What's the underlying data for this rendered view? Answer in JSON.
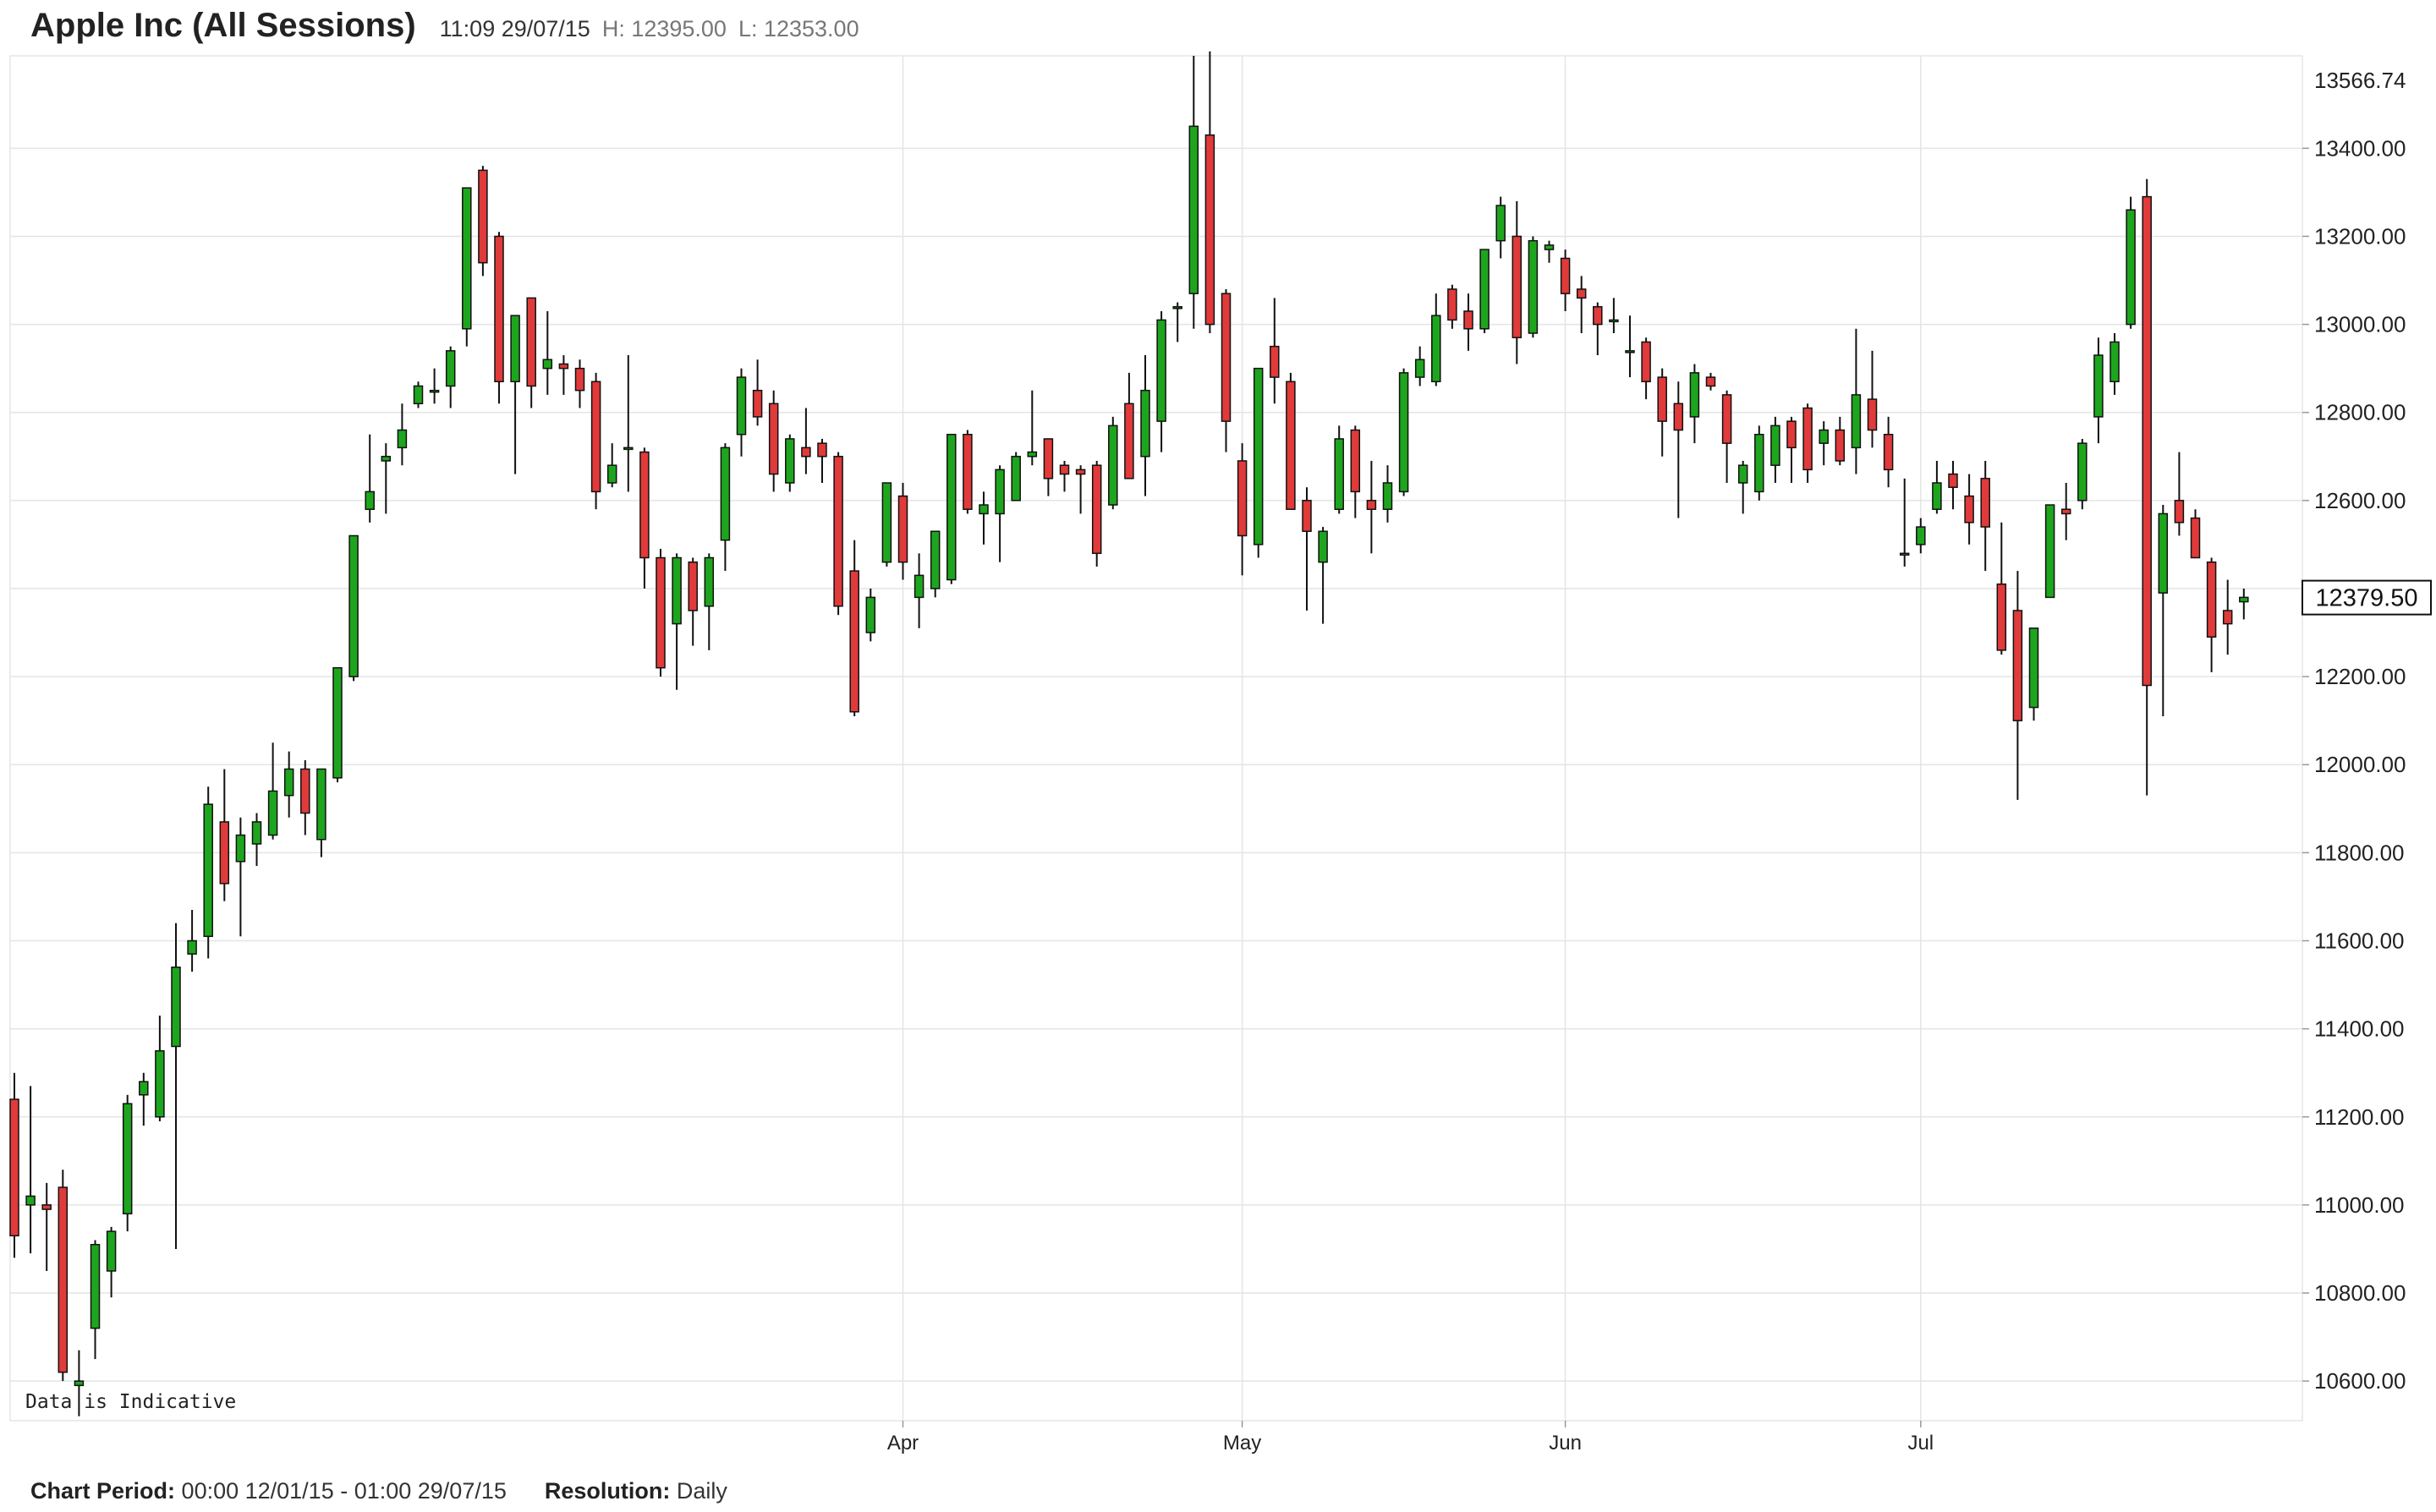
{
  "header": {
    "title": "Apple Inc (All Sessions)",
    "time": "11:09 29/07/15",
    "high": "H: 12395.00",
    "low": "L: 12353.00"
  },
  "footer": {
    "period_label": "Chart Period:",
    "period_value": "00:00 12/01/15 - 01:00 29/07/15",
    "resolution_label": "Resolution:",
    "resolution_value": "Daily"
  },
  "chart_data": {
    "type": "candlestick",
    "note": "Data is Indicative",
    "current_price": "12379.50",
    "top_price": "13566.74",
    "y_ticks": [
      10600,
      10800,
      11000,
      11200,
      11400,
      11600,
      11800,
      12000,
      12200,
      12400,
      12600,
      12800,
      13000,
      13200,
      13400
    ],
    "y_tick_labels": [
      "10600.00",
      "10800.00",
      "11000.00",
      "11200.00",
      "11400.00",
      "11600.00",
      "11800.00",
      "12000.00",
      "12200.00",
      "12400.00",
      "12600.00",
      "12800.00",
      "13000.00",
      "13200.00",
      "13400.00"
    ],
    "ylim": [
      10510,
      13610
    ],
    "x_labels": [
      {
        "label": "Apr",
        "index": 55
      },
      {
        "label": "May",
        "index": 76
      },
      {
        "label": "Jun",
        "index": 96
      },
      {
        "label": "Jul",
        "index": 118
      }
    ],
    "colors": {
      "up": "#1ea51e",
      "down": "#e03a3a",
      "wick": "#111111",
      "grid": "#e4e4e4"
    },
    "candles": [
      [
        11240,
        11300,
        10880,
        10930
      ],
      [
        11000,
        11270,
        10890,
        11020
      ],
      [
        11000,
        11050,
        10850,
        10990
      ],
      [
        11040,
        11080,
        10600,
        10620
      ],
      [
        10590,
        10670,
        10520,
        10600
      ],
      [
        10720,
        10920,
        10650,
        10910
      ],
      [
        10850,
        10950,
        10790,
        10940
      ],
      [
        10980,
        11250,
        10940,
        11230
      ],
      [
        11250,
        11300,
        11180,
        11280
      ],
      [
        11200,
        11430,
        11190,
        11350
      ],
      [
        11360,
        11640,
        10900,
        11540
      ],
      [
        11570,
        11670,
        11530,
        11600
      ],
      [
        11610,
        11950,
        11560,
        11910
      ],
      [
        11870,
        11990,
        11690,
        11730
      ],
      [
        11780,
        11880,
        11610,
        11840
      ],
      [
        11820,
        11890,
        11770,
        11870
      ],
      [
        11840,
        12050,
        11830,
        11940
      ],
      [
        11930,
        12030,
        11880,
        11990
      ],
      [
        11990,
        12010,
        11840,
        11890
      ],
      [
        11830,
        11990,
        11790,
        11990
      ],
      [
        11970,
        12220,
        11960,
        12220
      ],
      [
        12200,
        12520,
        12190,
        12520
      ],
      [
        12580,
        12750,
        12550,
        12620
      ],
      [
        12690,
        12730,
        12570,
        12700
      ],
      [
        12720,
        12820,
        12680,
        12760
      ],
      [
        12820,
        12870,
        12810,
        12860
      ],
      [
        12850,
        12900,
        12820,
        12850
      ],
      [
        12860,
        12950,
        12810,
        12940
      ],
      [
        12990,
        13310,
        12950,
        13310
      ],
      [
        13350,
        13360,
        13110,
        13140
      ],
      [
        13200,
        13210,
        12820,
        12870
      ],
      [
        12870,
        13020,
        12660,
        13020
      ],
      [
        13060,
        13060,
        12810,
        12860
      ],
      [
        12900,
        13030,
        12840,
        12920
      ],
      [
        12910,
        12930,
        12840,
        12900
      ],
      [
        12900,
        12920,
        12810,
        12850
      ],
      [
        12870,
        12890,
        12580,
        12620
      ],
      [
        12640,
        12730,
        12630,
        12680
      ],
      [
        12720,
        12930,
        12620,
        12720
      ],
      [
        12710,
        12720,
        12400,
        12470
      ],
      [
        12470,
        12490,
        12200,
        12220
      ],
      [
        12320,
        12480,
        12170,
        12470
      ],
      [
        12460,
        12470,
        12270,
        12350
      ],
      [
        12360,
        12480,
        12260,
        12470
      ],
      [
        12510,
        12730,
        12440,
        12720
      ],
      [
        12750,
        12900,
        12700,
        12880
      ],
      [
        12850,
        12920,
        12770,
        12790
      ],
      [
        12820,
        12850,
        12620,
        12660
      ],
      [
        12640,
        12750,
        12620,
        12740
      ],
      [
        12720,
        12810,
        12660,
        12700
      ],
      [
        12730,
        12740,
        12640,
        12700
      ],
      [
        12700,
        12710,
        12340,
        12360
      ],
      [
        12440,
        12510,
        12110,
        12120
      ],
      [
        12300,
        12400,
        12280,
        12380
      ],
      [
        12460,
        12640,
        12450,
        12640
      ],
      [
        12610,
        12640,
        12420,
        12460
      ],
      [
        12380,
        12480,
        12310,
        12430
      ],
      [
        12400,
        12530,
        12380,
        12530
      ],
      [
        12420,
        12750,
        12410,
        12750
      ],
      [
        12750,
        12760,
        12570,
        12580
      ],
      [
        12570,
        12620,
        12500,
        12590
      ],
      [
        12570,
        12680,
        12460,
        12670
      ],
      [
        12600,
        12710,
        12600,
        12700
      ],
      [
        12700,
        12850,
        12680,
        12710
      ],
      [
        12740,
        12740,
        12610,
        12650
      ],
      [
        12680,
        12690,
        12620,
        12660
      ],
      [
        12670,
        12680,
        12570,
        12660
      ],
      [
        12680,
        12690,
        12450,
        12480
      ],
      [
        12590,
        12790,
        12580,
        12770
      ],
      [
        12820,
        12890,
        12650,
        12650
      ],
      [
        12700,
        12930,
        12610,
        12850
      ],
      [
        12780,
        13030,
        12710,
        13010
      ],
      [
        13040,
        13050,
        12960,
        13040
      ],
      [
        13070,
        13610,
        12990,
        13450
      ],
      [
        13430,
        13620,
        12980,
        13000
      ],
      [
        13070,
        13080,
        12710,
        12780
      ],
      [
        12690,
        12730,
        12430,
        12520
      ],
      [
        12500,
        12900,
        12470,
        12900
      ],
      [
        12950,
        13060,
        12820,
        12880
      ],
      [
        12870,
        12890,
        12580,
        12580
      ],
      [
        12600,
        12630,
        12350,
        12530
      ],
      [
        12460,
        12540,
        12320,
        12530
      ],
      [
        12580,
        12770,
        12570,
        12740
      ],
      [
        12760,
        12770,
        12560,
        12620
      ],
      [
        12600,
        12690,
        12480,
        12580
      ],
      [
        12580,
        12680,
        12550,
        12640
      ],
      [
        12620,
        12900,
        12610,
        12890
      ],
      [
        12880,
        12950,
        12860,
        12920
      ],
      [
        12870,
        13070,
        12860,
        13020
      ],
      [
        13080,
        13090,
        12990,
        13010
      ],
      [
        13030,
        13070,
        12940,
        12990
      ],
      [
        12990,
        13170,
        12980,
        13170
      ],
      [
        13190,
        13290,
        13150,
        13270
      ],
      [
        13200,
        13280,
        12910,
        12970
      ],
      [
        12980,
        13200,
        12970,
        13190
      ],
      [
        13170,
        13190,
        13140,
        13180
      ],
      [
        13150,
        13170,
        13030,
        13070
      ],
      [
        13080,
        13110,
        12980,
        13060
      ],
      [
        13040,
        13050,
        12930,
        13000
      ],
      [
        13010,
        13060,
        12980,
        13010
      ],
      [
        12940,
        13020,
        12880,
        12940
      ],
      [
        12960,
        12970,
        12830,
        12870
      ],
      [
        12880,
        12900,
        12700,
        12780
      ],
      [
        12820,
        12870,
        12560,
        12760
      ],
      [
        12790,
        12910,
        12730,
        12890
      ],
      [
        12880,
        12890,
        12850,
        12860
      ],
      [
        12840,
        12850,
        12640,
        12730
      ],
      [
        12640,
        12690,
        12570,
        12680
      ],
      [
        12620,
        12770,
        12600,
        12750
      ],
      [
        12680,
        12790,
        12640,
        12770
      ],
      [
        12780,
        12790,
        12640,
        12720
      ],
      [
        12810,
        12820,
        12640,
        12670
      ],
      [
        12730,
        12780,
        12680,
        12760
      ],
      [
        12760,
        12790,
        12680,
        12690
      ],
      [
        12720,
        12990,
        12660,
        12840
      ],
      [
        12830,
        12940,
        12720,
        12760
      ],
      [
        12750,
        12790,
        12630,
        12670
      ],
      [
        12480,
        12650,
        12450,
        12480
      ],
      [
        12500,
        12560,
        12480,
        12540
      ],
      [
        12580,
        12690,
        12570,
        12640
      ],
      [
        12660,
        12690,
        12580,
        12630
      ],
      [
        12610,
        12660,
        12500,
        12550
      ],
      [
        12650,
        12690,
        12440,
        12540
      ],
      [
        12410,
        12550,
        12250,
        12260
      ],
      [
        12350,
        12440,
        11920,
        12100
      ],
      [
        12130,
        12310,
        12100,
        12310
      ],
      [
        12380,
        12590,
        12380,
        12590
      ],
      [
        12580,
        12640,
        12510,
        12570
      ],
      [
        12600,
        12740,
        12580,
        12730
      ],
      [
        12790,
        12970,
        12730,
        12930
      ],
      [
        12870,
        12980,
        12840,
        12960
      ],
      [
        13000,
        13290,
        12990,
        13260
      ],
      [
        13290,
        13330,
        11930,
        12180
      ],
      [
        12390,
        12590,
        12110,
        12570
      ],
      [
        12600,
        12710,
        12520,
        12550
      ],
      [
        12560,
        12580,
        12470,
        12470
      ],
      [
        12460,
        12470,
        12210,
        12290
      ],
      [
        12350,
        12420,
        12250,
        12320
      ],
      [
        12370,
        12400,
        12330,
        12380
      ]
    ]
  }
}
